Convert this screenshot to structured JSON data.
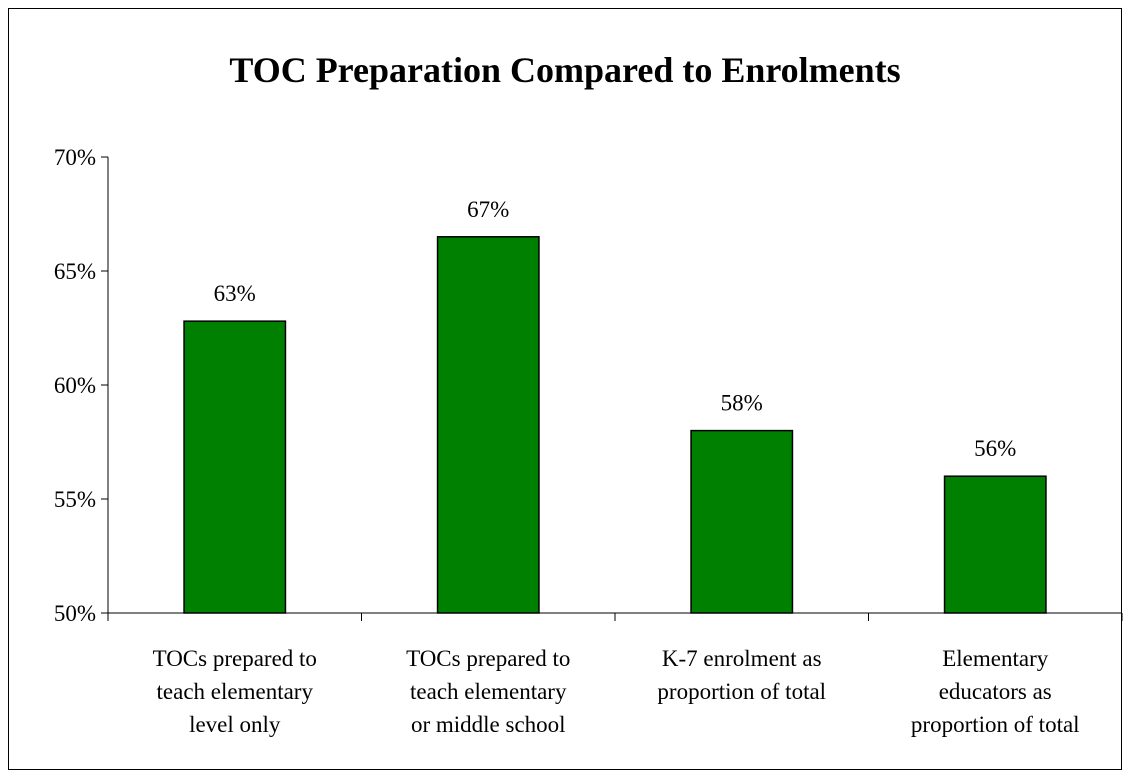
{
  "chart_data": {
    "type": "bar",
    "title": "TOC Preparation Compared to Enrolments",
    "categories": [
      [
        "TOCs prepared to",
        "teach elementary",
        "level only"
      ],
      [
        "TOCs prepared to",
        "teach elementary",
        "or middle school"
      ],
      [
        "K-7 enrolment as",
        "proportion of total"
      ],
      [
        "Elementary",
        "educators as",
        "proportion of total"
      ]
    ],
    "values": [
      62.8,
      66.5,
      58.0,
      56.0
    ],
    "data_labels": [
      "63%",
      "67%",
      "58%",
      "56%"
    ],
    "ylim": [
      50,
      70
    ],
    "yticks": [
      50,
      55,
      60,
      65,
      70
    ],
    "ytick_labels": [
      "50%",
      "55%",
      "60%",
      "65%",
      "70%"
    ],
    "bar_color": "#008000",
    "grid": false,
    "legend": "none"
  }
}
